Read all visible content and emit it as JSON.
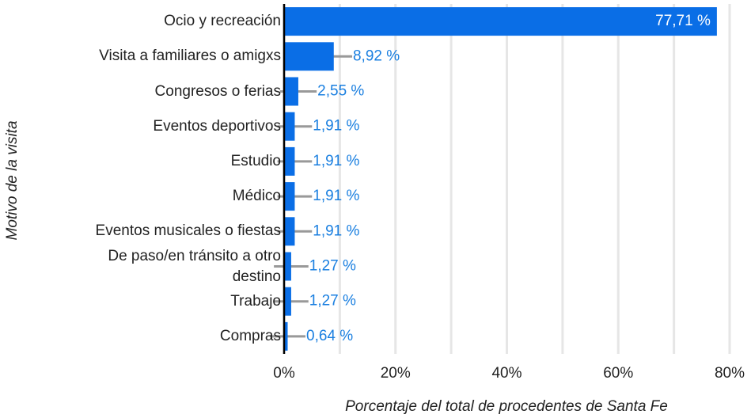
{
  "chart_data": {
    "type": "bar",
    "orientation": "horizontal",
    "x_label": "Porcentaje del total de procedentes de Santa Fe",
    "y_label": "Motivo de la visita",
    "categories": [
      "Ocio y recreación",
      "Visita a familiares o amigxs",
      "Congresos o ferias",
      "Eventos deportivos",
      "Estudio",
      "Médico",
      "Eventos musicales o fiestas",
      "De paso/en tránsito a otro destino",
      "Trabajo",
      "Compras"
    ],
    "values": [
      77.71,
      8.92,
      2.55,
      1.91,
      1.91,
      1.91,
      1.91,
      1.27,
      1.27,
      0.64
    ],
    "value_labels": [
      "77,71 %",
      "8,92 %",
      "2,55 %",
      "1,91 %",
      "1,91 %",
      "1,91 %",
      "1,91 %",
      "1,27 %",
      "1,27 %",
      "0,64 %"
    ],
    "errors": [
      null,
      3.3,
      3.3,
      3.1,
      3.1,
      3.1,
      3.1,
      3.1,
      3.1,
      3.2
    ],
    "color": "#0a6ee6",
    "label_color": "#1a7fe0",
    "error_color": "#999999",
    "xlim": [
      0,
      80
    ],
    "xticks": [
      {
        "value": 0,
        "label": "0%"
      },
      {
        "value": 20,
        "label": "20%"
      },
      {
        "value": 40,
        "label": "40%"
      },
      {
        "value": 60,
        "label": "60%"
      },
      {
        "value": 80,
        "label": "80%"
      }
    ],
    "minor_xticks": [
      10,
      30,
      50,
      70
    ],
    "grid": true
  }
}
